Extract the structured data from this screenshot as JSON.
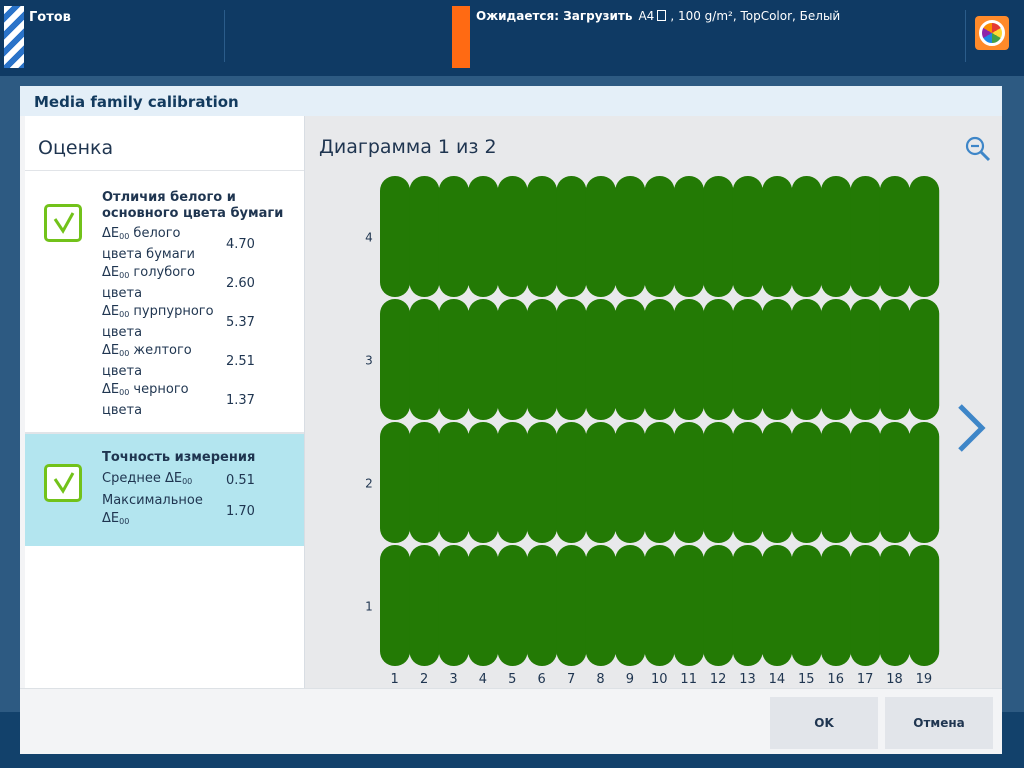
{
  "topbar": {
    "status": "Готов",
    "expect_label": "Ожидается: Загрузить",
    "media_size": "A4",
    "media_details": ", 100 g/m², TopColor, Белый"
  },
  "dialog": {
    "title": "Media family calibration",
    "left": {
      "heading": "Оценка",
      "section1": {
        "title": "Отличия белого и основного цвета бумаги",
        "status": "pass",
        "rows": [
          {
            "prefix": "ΔE",
            "sub": "00",
            "label": " белого цвета бумаги",
            "value": "4.70"
          },
          {
            "prefix": "ΔE",
            "sub": "00",
            "label": " голубого цвета",
            "value": "2.60"
          },
          {
            "prefix": "ΔE",
            "sub": "00",
            "label": " пурпурного цвета",
            "value": "5.37"
          },
          {
            "prefix": "ΔE",
            "sub": "00",
            "label": " желтого цвета",
            "value": "2.51"
          },
          {
            "prefix": "ΔE",
            "sub": "00",
            "label": " черного цвета",
            "value": "1.37"
          }
        ]
      },
      "section2": {
        "title": "Точность измерения",
        "status": "pass",
        "rows": [
          {
            "prefix": "Среднее ΔE",
            "sub": "00",
            "label": "",
            "value": "0.51"
          },
          {
            "prefix": "Максимальное ΔE",
            "sub": "00",
            "label": "",
            "value": "1.70"
          }
        ]
      }
    },
    "chart_title": "Диаграмма 1 из 2",
    "buttons": {
      "ok": "OK",
      "cancel": "Отмена"
    }
  },
  "colors": {
    "patch": "#237a05",
    "accent": "#3e86c8",
    "check": "#72c21a",
    "selected_section": "#b3e5ef",
    "status_orange": "#ff6a13"
  },
  "icons": {
    "zoom": "zoom-out-icon",
    "next": "chevron-right-icon",
    "check": "checkbox-checked-icon",
    "app": "color-wheel-warning-icon"
  },
  "chart_data": {
    "type": "heatmap",
    "title": "Диаграмма 1 из 2",
    "columns": [
      "1",
      "2",
      "3",
      "4",
      "5",
      "6",
      "7",
      "8",
      "9",
      "10",
      "11",
      "12",
      "13",
      "14",
      "15",
      "16",
      "17",
      "18",
      "19"
    ],
    "rows": [
      "1",
      "2",
      "3",
      "4"
    ],
    "cell_status": "pass",
    "cell_color": "#237a05",
    "grid": false,
    "legend": "none"
  }
}
